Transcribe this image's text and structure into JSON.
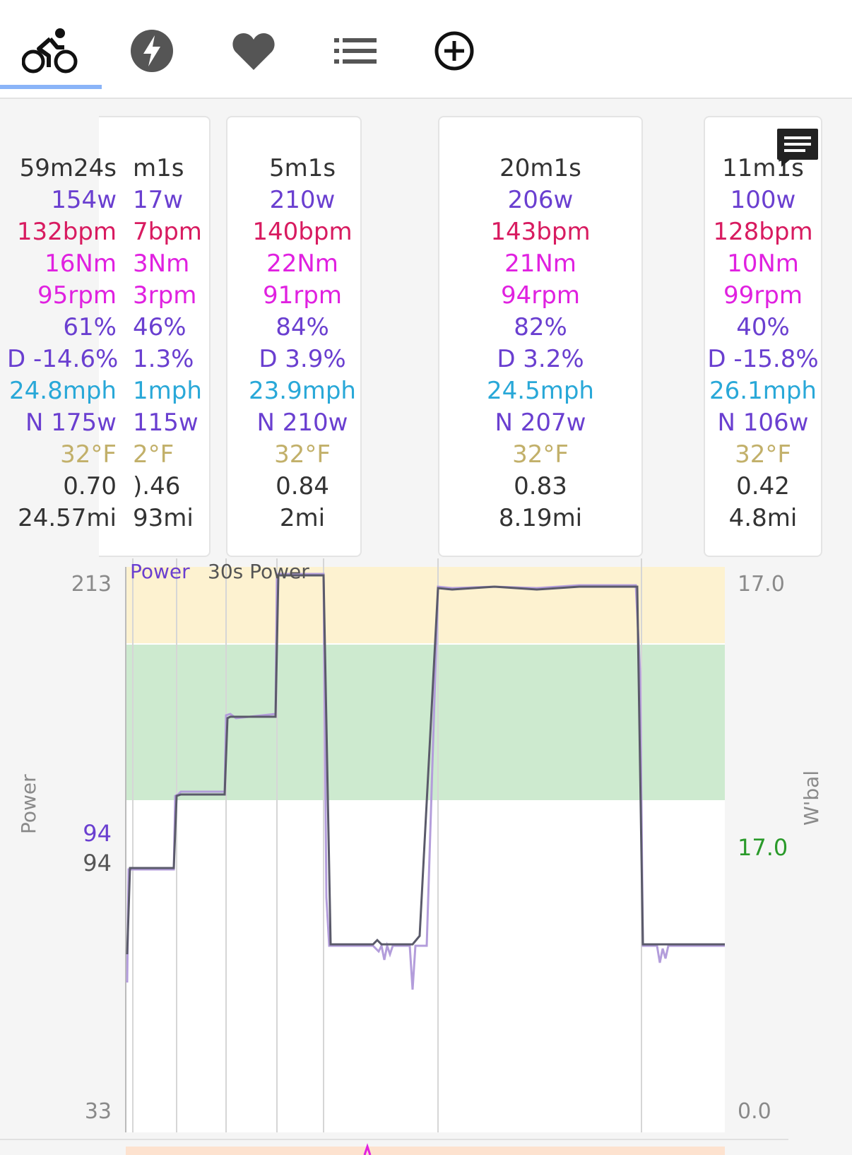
{
  "tabs": [
    {
      "name": "ride-tab",
      "icon": "bicycle-icon"
    },
    {
      "name": "power-tab",
      "icon": "lightning-icon"
    },
    {
      "name": "heart-tab",
      "icon": "heart-icon"
    },
    {
      "name": "list-tab",
      "icon": "list-icon"
    },
    {
      "name": "add-tab",
      "icon": "plus-circle-icon"
    }
  ],
  "intervals": [
    {
      "time": "59m24s",
      "power": "154w",
      "hr": "132bpm",
      "torque": "16Nm",
      "cadence": "95rpm",
      "pct": "61%",
      "delta": "D -14.6%",
      "speed": "24.8mph",
      "np": "N 175w",
      "temp": "32°F",
      "if": "0.70",
      "dist": "24.57mi"
    },
    {
      "time": "m1s",
      "power": "17w",
      "hr": "7bpm",
      "torque": "3Nm",
      "cadence": "3rpm",
      "pct": "46%",
      "delta": "1.3%",
      "speed": "1mph",
      "np": "115w",
      "temp": "2°F",
      "if": ").46",
      "dist": "93mi"
    },
    {
      "time": "5m1s",
      "power": "210w",
      "hr": "140bpm",
      "torque": "22Nm",
      "cadence": "91rpm",
      "pct": "84%",
      "delta": "D 3.9%",
      "speed": "23.9mph",
      "np": "N 210w",
      "temp": "32°F",
      "if": "0.84",
      "dist": "2mi"
    },
    {
      "time": "20m1s",
      "power": "206w",
      "hr": "143bpm",
      "torque": "21Nm",
      "cadence": "94rpm",
      "pct": "82%",
      "delta": "D 3.2%",
      "speed": "24.5mph",
      "np": "N 207w",
      "temp": "32°F",
      "if": "0.83",
      "dist": "8.19mi"
    },
    {
      "time": "11m1s",
      "power": "100w",
      "hr": "128bpm",
      "torque": "10Nm",
      "cadence": "99rpm",
      "pct": "40%",
      "delta": "D -15.8%",
      "speed": "26.1mph",
      "np": "N 106w",
      "temp": "32°F",
      "if": "0.42",
      "dist": "4.8mi"
    }
  ],
  "chart": {
    "legend": [
      "Power",
      "30s Power"
    ],
    "left_ticks": [
      "213",
      "94",
      "94",
      "33"
    ],
    "right_ticks": [
      "17.0",
      "17.0",
      "0.0"
    ],
    "left_title": "Power",
    "right_title": "W'bal",
    "colors": {
      "power": "#6a3fd0",
      "smooth": "#5a5a6a",
      "zone_yellow": "#fdf2d0",
      "zone_green": "#cdeacf",
      "wbal": "#2a9a2a"
    }
  },
  "chart_data": {
    "type": "line",
    "ylabel": "Power",
    "ylim": [
      33,
      213
    ],
    "y2label": "W'bal",
    "series": [
      {
        "name": "Power"
      },
      {
        "name": "30s Power"
      }
    ]
  }
}
